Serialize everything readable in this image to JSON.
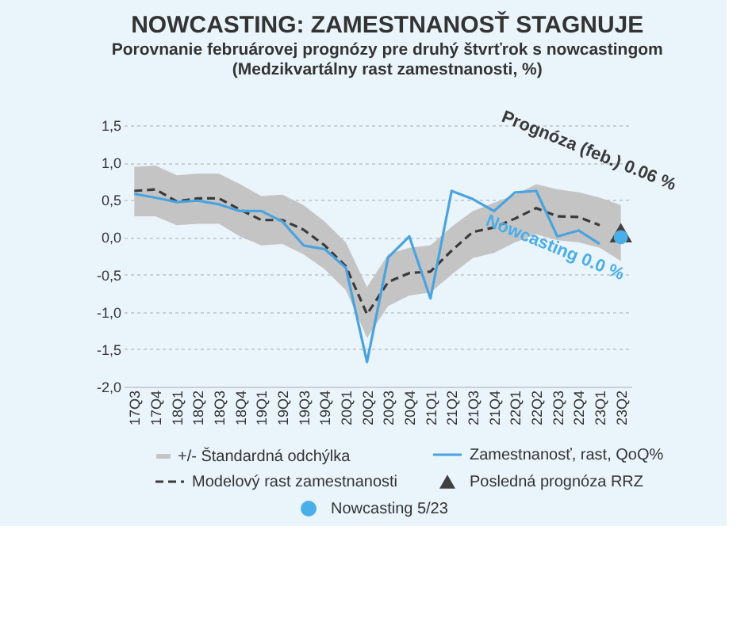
{
  "chart_data": {
    "type": "line",
    "title": "NOWCASTING: ZAMESTNANOSŤ STAGNUJE",
    "subtitle": "Porovnanie februárovej prognózy pre druhý štvrťrok s nowcastingom",
    "ylabel": "(Medzikvartálny rast zamestnanosti, %)",
    "categories": [
      "17Q3",
      "17Q4",
      "18Q1",
      "18Q2",
      "18Q3",
      "18Q4",
      "19Q1",
      "19Q2",
      "19Q3",
      "19Q4",
      "20Q1",
      "20Q2",
      "20Q3",
      "20Q4",
      "21Q1",
      "21Q2",
      "21Q3",
      "21Q4",
      "22Q1",
      "22Q2",
      "22Q3",
      "22Q4",
      "23Q1",
      "23Q2"
    ],
    "series": [
      {
        "name": "Modelový rast zamestnanosti",
        "color": "#3a3a3a",
        "line_style": "dashed",
        "values": [
          0.62,
          0.64,
          0.48,
          0.52,
          0.52,
          0.37,
          0.23,
          0.23,
          0.1,
          -0.11,
          -0.39,
          -1.03,
          -0.6,
          -0.48,
          -0.46,
          -0.18,
          0.07,
          0.13,
          0.25,
          0.39,
          0.28,
          0.27,
          0.16,
          null
        ],
        "upper": [
          0.94,
          0.96,
          0.83,
          0.85,
          0.85,
          0.71,
          0.55,
          0.57,
          0.43,
          0.21,
          -0.07,
          -0.67,
          -0.23,
          -0.14,
          -0.11,
          0.14,
          0.35,
          0.46,
          0.57,
          0.71,
          0.64,
          0.6,
          0.53,
          0.43
        ],
        "lower": [
          0.28,
          0.28,
          0.16,
          0.18,
          0.18,
          0.01,
          -0.11,
          -0.09,
          -0.23,
          -0.43,
          -0.71,
          -1.35,
          -0.92,
          -0.78,
          -0.74,
          -0.5,
          -0.28,
          -0.21,
          -0.07,
          0.04,
          -0.04,
          -0.07,
          -0.14,
          -0.32
        ]
      },
      {
        "name": "Zamestnanosť, rast, QoQ%",
        "color": "#4aa3df",
        "line_style": "solid",
        "values": [
          0.58,
          0.53,
          0.47,
          0.49,
          0.44,
          0.35,
          0.35,
          0.21,
          -0.11,
          -0.16,
          -0.41,
          -1.67,
          -0.27,
          0.01,
          -0.82,
          0.62,
          0.51,
          0.35,
          0.6,
          0.62,
          0.01,
          0.09,
          -0.09,
          null
        ]
      },
      {
        "type": "scatter",
        "name": "Posledná prognóza RRZ",
        "color": "#404040",
        "marker": "triangle",
        "x": [
          "23Q2"
        ],
        "values": [
          0.06
        ]
      },
      {
        "type": "scatter",
        "name": "Nowcasting 5/23",
        "color": "#4aaee8",
        "marker": "circle",
        "x": [
          "23Q2"
        ],
        "values": [
          0.0
        ]
      }
    ],
    "annotations": [
      "+/- Štandardná odchýlka",
      {
        "text": "Prognóza (feb.) 0.06 %",
        "x": "23Q2",
        "y": 0.06
      },
      {
        "text": "Nowcasting 0.0 %",
        "x": "23Q2",
        "y": 0.0
      }
    ],
    "ylim": [
      -2.0,
      1.5
    ],
    "yticks": [
      {
        "value": -2.0,
        "label": "-2,0"
      },
      {
        "value": -1.5,
        "label": "-1,5"
      },
      {
        "value": -1.0,
        "label": "-1,0"
      },
      {
        "value": -0.5,
        "label": "-0,5"
      },
      {
        "value": 0.0,
        "label": "0,0"
      },
      {
        "value": 0.5,
        "label": "0,5"
      },
      {
        "value": 1.0,
        "label": "1,0"
      },
      {
        "value": 1.5,
        "label": "1,5"
      }
    ],
    "grid": "y",
    "legend": "bottom"
  }
}
